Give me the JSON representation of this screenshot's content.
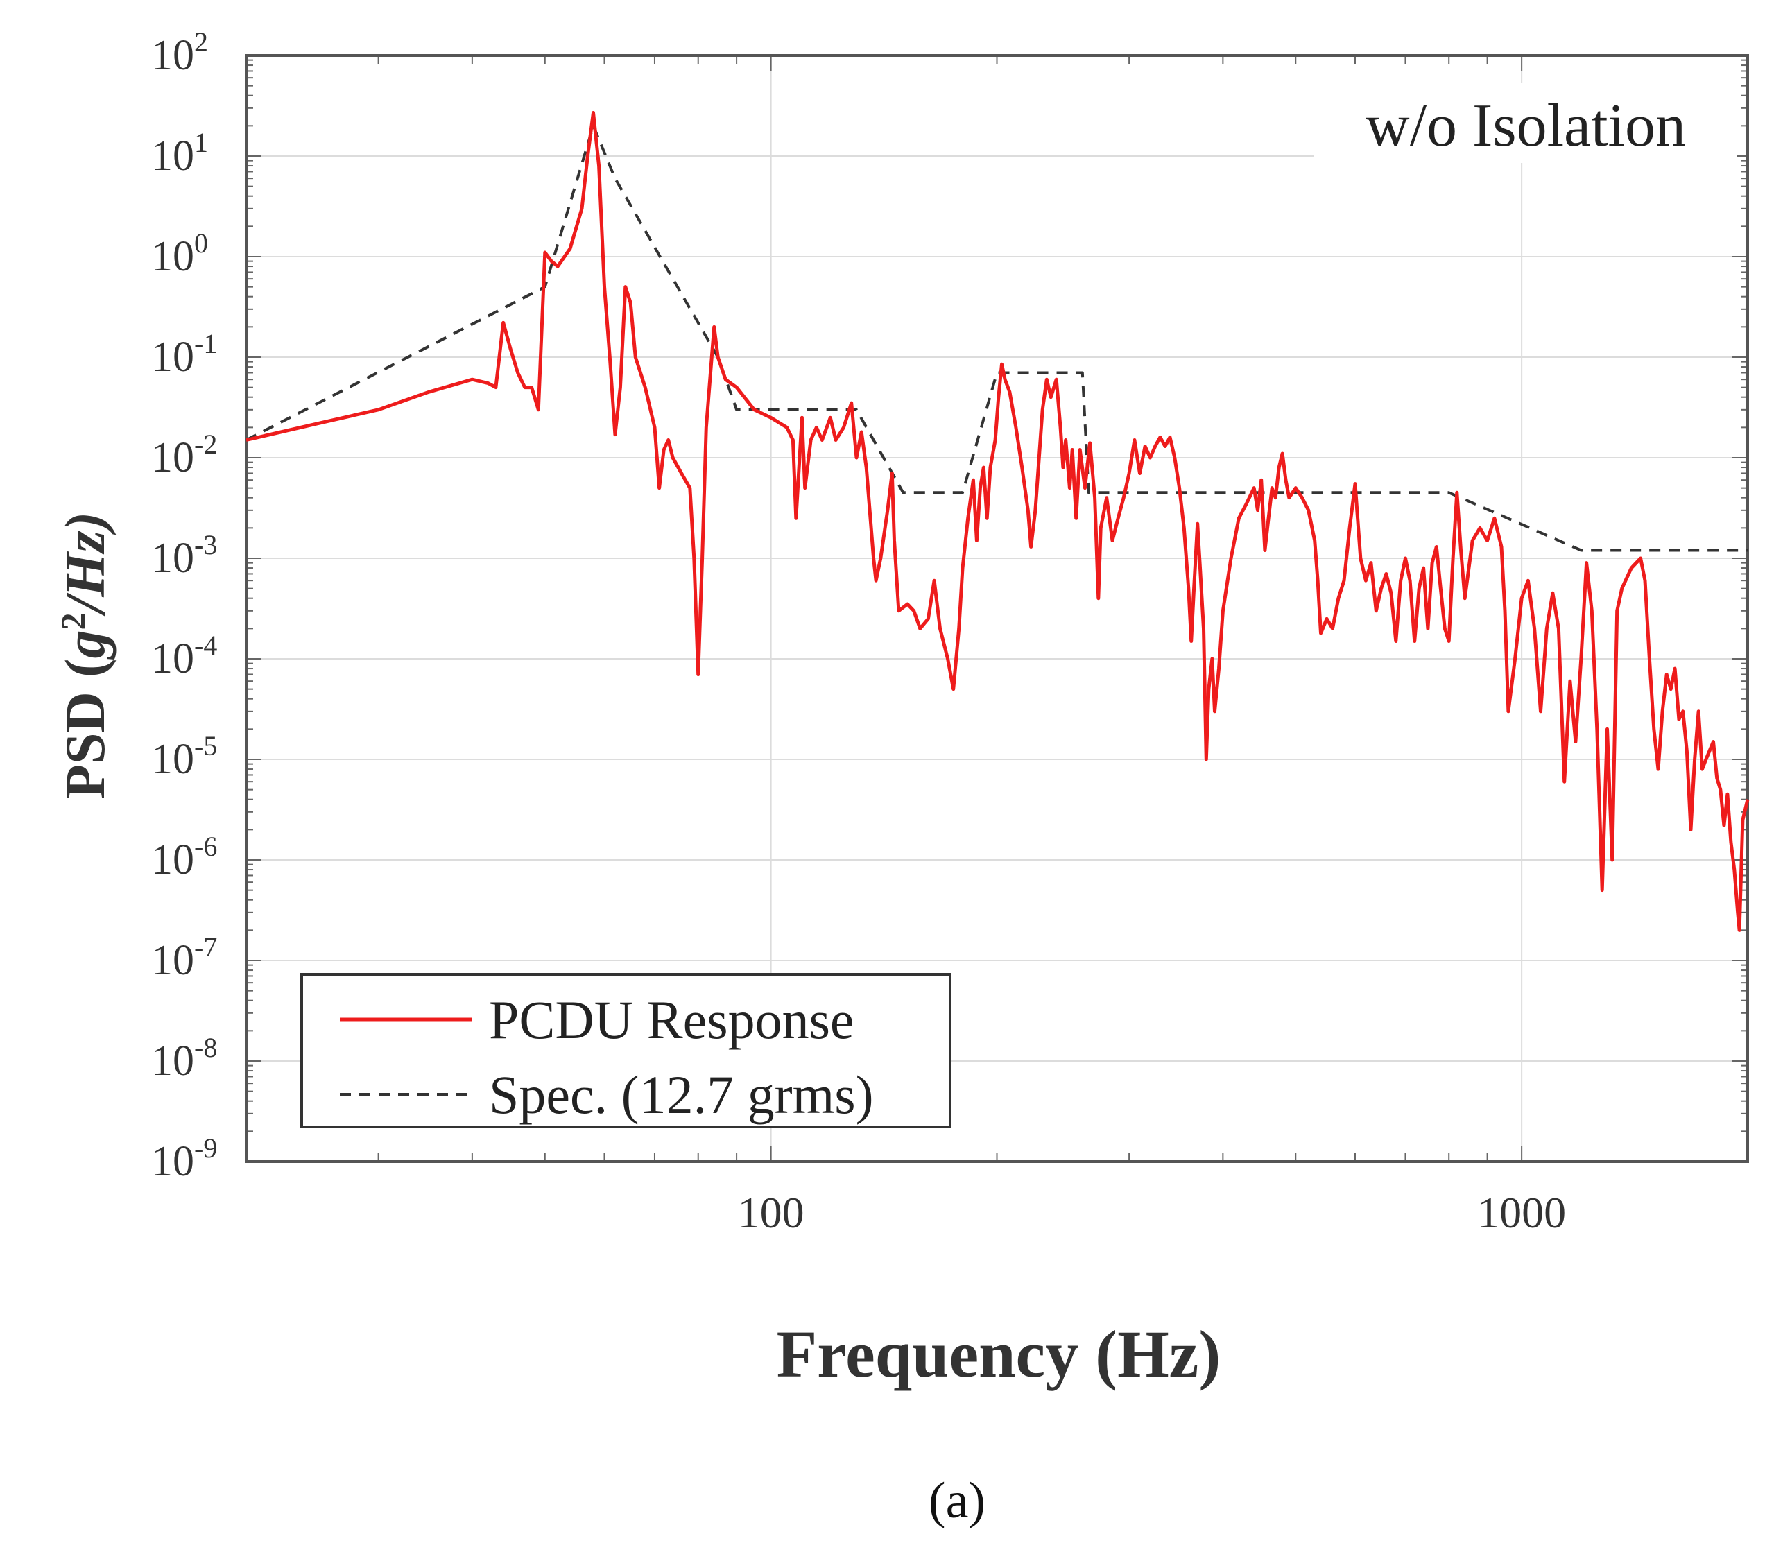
{
  "chart_data": {
    "type": "line",
    "title": "",
    "annotation": "w/o Isolation",
    "caption": "(a)",
    "xlabel": "Frequency (Hz)",
    "ylabel": {
      "prefix": "PSD (",
      "var": "g",
      "exp": "2",
      "suffix": "/Hz)"
    },
    "xscale": "log",
    "yscale": "log",
    "xlim": [
      20,
      2000
    ],
    "ylim": [
      1e-09,
      100
    ],
    "grid": true,
    "x_ticks": [
      {
        "value": 100,
        "label": "100"
      },
      {
        "value": 1000,
        "label": "1000"
      }
    ],
    "y_ticks": [
      {
        "value": 100,
        "base": "10",
        "exp": "2"
      },
      {
        "value": 10,
        "base": "10",
        "exp": "1"
      },
      {
        "value": 1,
        "base": "10",
        "exp": "0"
      },
      {
        "value": 0.1,
        "base": "10",
        "exp": "-1"
      },
      {
        "value": 0.01,
        "base": "10",
        "exp": "-2"
      },
      {
        "value": 0.001,
        "base": "10",
        "exp": "-3"
      },
      {
        "value": 0.0001,
        "base": "10",
        "exp": "-4"
      },
      {
        "value": 1e-05,
        "base": "10",
        "exp": "-5"
      },
      {
        "value": 1e-06,
        "base": "10",
        "exp": "-6"
      },
      {
        "value": 1e-07,
        "base": "10",
        "exp": "-7"
      },
      {
        "value": 1e-08,
        "base": "10",
        "exp": "-8"
      },
      {
        "value": 1e-09,
        "base": "10",
        "exp": "-9"
      }
    ],
    "legend": {
      "position": "bottom-left"
    },
    "series": [
      {
        "name": "PCDU Response",
        "color": "#ee1c1c",
        "style": "solid",
        "points": [
          [
            20,
            0.015
          ],
          [
            25,
            0.022
          ],
          [
            30,
            0.03
          ],
          [
            35,
            0.045
          ],
          [
            40,
            0.06
          ],
          [
            42,
            0.055
          ],
          [
            43,
            0.05
          ],
          [
            44,
            0.22
          ],
          [
            45,
            0.12
          ],
          [
            46,
            0.07
          ],
          [
            47,
            0.05
          ],
          [
            48,
            0.05
          ],
          [
            49,
            0.03
          ],
          [
            50,
            1.1
          ],
          [
            51,
            0.9
          ],
          [
            52,
            0.8
          ],
          [
            54,
            1.2
          ],
          [
            56,
            3.0
          ],
          [
            57,
            10
          ],
          [
            58,
            27
          ],
          [
            59,
            8
          ],
          [
            60,
            0.5
          ],
          [
            61,
            0.1
          ],
          [
            62,
            0.017
          ],
          [
            63,
            0.05
          ],
          [
            64,
            0.5
          ],
          [
            65,
            0.35
          ],
          [
            66,
            0.1
          ],
          [
            68,
            0.05
          ],
          [
            70,
            0.02
          ],
          [
            71,
            0.005
          ],
          [
            72,
            0.012
          ],
          [
            73,
            0.015
          ],
          [
            74,
            0.01
          ],
          [
            76,
            0.007
          ],
          [
            78,
            0.005
          ],
          [
            79,
            0.001
          ],
          [
            80,
            7e-05
          ],
          [
            81,
            0.001
          ],
          [
            82,
            0.02
          ],
          [
            84,
            0.2
          ],
          [
            85,
            0.1
          ],
          [
            87,
            0.06
          ],
          [
            90,
            0.05
          ],
          [
            95,
            0.03
          ],
          [
            100,
            0.025
          ],
          [
            105,
            0.02
          ],
          [
            107,
            0.015
          ],
          [
            108,
            0.0025
          ],
          [
            110,
            0.025
          ],
          [
            111,
            0.005
          ],
          [
            113,
            0.015
          ],
          [
            115,
            0.02
          ],
          [
            117,
            0.015
          ],
          [
            120,
            0.025
          ],
          [
            122,
            0.015
          ],
          [
            125,
            0.02
          ],
          [
            128,
            0.035
          ],
          [
            130,
            0.01
          ],
          [
            132,
            0.018
          ],
          [
            134,
            0.008
          ],
          [
            137,
            0.001
          ],
          [
            138,
            0.0006
          ],
          [
            140,
            0.001
          ],
          [
            143,
            0.003
          ],
          [
            145,
            0.007
          ],
          [
            146,
            0.0015
          ],
          [
            148,
            0.0003
          ],
          [
            152,
            0.00035
          ],
          [
            155,
            0.0003
          ],
          [
            158,
            0.0002
          ],
          [
            162,
            0.00025
          ],
          [
            165,
            0.0006
          ],
          [
            168,
            0.0002
          ],
          [
            172,
            0.0001
          ],
          [
            175,
            5e-05
          ],
          [
            178,
            0.0002
          ],
          [
            180,
            0.0008
          ],
          [
            183,
            0.0025
          ],
          [
            186,
            0.006
          ],
          [
            188,
            0.0015
          ],
          [
            190,
            0.005
          ],
          [
            192,
            0.008
          ],
          [
            194,
            0.0025
          ],
          [
            196,
            0.008
          ],
          [
            199,
            0.015
          ],
          [
            201,
            0.04
          ],
          [
            203,
            0.085
          ],
          [
            205,
            0.06
          ],
          [
            208,
            0.045
          ],
          [
            212,
            0.02
          ],
          [
            216,
            0.008
          ],
          [
            220,
            0.003
          ],
          [
            222,
            0.0013
          ],
          [
            225,
            0.003
          ],
          [
            230,
            0.03
          ],
          [
            233,
            0.06
          ],
          [
            236,
            0.04
          ],
          [
            240,
            0.06
          ],
          [
            243,
            0.02
          ],
          [
            245,
            0.008
          ],
          [
            247,
            0.015
          ],
          [
            250,
            0.005
          ],
          [
            252,
            0.012
          ],
          [
            255,
            0.0025
          ],
          [
            258,
            0.012
          ],
          [
            262,
            0.005
          ],
          [
            266,
            0.014
          ],
          [
            270,
            0.004
          ],
          [
            273,
            0.0004
          ],
          [
            275,
            0.002
          ],
          [
            280,
            0.004
          ],
          [
            285,
            0.0015
          ],
          [
            290,
            0.0025
          ],
          [
            295,
            0.004
          ],
          [
            300,
            0.007
          ],
          [
            305,
            0.015
          ],
          [
            310,
            0.007
          ],
          [
            315,
            0.013
          ],
          [
            320,
            0.01
          ],
          [
            325,
            0.013
          ],
          [
            330,
            0.016
          ],
          [
            335,
            0.013
          ],
          [
            340,
            0.016
          ],
          [
            345,
            0.01
          ],
          [
            350,
            0.005
          ],
          [
            355,
            0.002
          ],
          [
            360,
            0.0005
          ],
          [
            363,
            0.00015
          ],
          [
            366,
            0.0005
          ],
          [
            370,
            0.0022
          ],
          [
            373,
            0.0008
          ],
          [
            377,
            0.0002
          ],
          [
            380,
            1e-05
          ],
          [
            383,
            5e-05
          ],
          [
            387,
            0.0001
          ],
          [
            390,
            3e-05
          ],
          [
            395,
            8e-05
          ],
          [
            400,
            0.0003
          ],
          [
            410,
            0.001
          ],
          [
            420,
            0.0025
          ],
          [
            430,
            0.0035
          ],
          [
            440,
            0.005
          ],
          [
            445,
            0.003
          ],
          [
            450,
            0.006
          ],
          [
            455,
            0.0012
          ],
          [
            460,
            0.0025
          ],
          [
            465,
            0.005
          ],
          [
            470,
            0.004
          ],
          [
            475,
            0.008
          ],
          [
            480,
            0.011
          ],
          [
            485,
            0.006
          ],
          [
            490,
            0.004
          ],
          [
            500,
            0.005
          ],
          [
            510,
            0.004
          ],
          [
            520,
            0.003
          ],
          [
            530,
            0.0015
          ],
          [
            535,
            0.0006
          ],
          [
            540,
            0.00018
          ],
          [
            550,
            0.00025
          ],
          [
            560,
            0.0002
          ],
          [
            570,
            0.0004
          ],
          [
            580,
            0.0006
          ],
          [
            590,
            0.002
          ],
          [
            600,
            0.0055
          ],
          [
            610,
            0.001
          ],
          [
            620,
            0.0006
          ],
          [
            630,
            0.0009
          ],
          [
            640,
            0.0003
          ],
          [
            650,
            0.0005
          ],
          [
            660,
            0.0007
          ],
          [
            670,
            0.00045
          ],
          [
            680,
            0.00015
          ],
          [
            690,
            0.0006
          ],
          [
            700,
            0.001
          ],
          [
            710,
            0.0006
          ],
          [
            720,
            0.00015
          ],
          [
            730,
            0.0005
          ],
          [
            740,
            0.0008
          ],
          [
            750,
            0.0002
          ],
          [
            760,
            0.0009
          ],
          [
            770,
            0.0013
          ],
          [
            780,
            0.0005
          ],
          [
            790,
            0.0002
          ],
          [
            800,
            0.00015
          ],
          [
            810,
            0.001
          ],
          [
            820,
            0.0045
          ],
          [
            830,
            0.0012
          ],
          [
            840,
            0.0004
          ],
          [
            860,
            0.0015
          ],
          [
            880,
            0.002
          ],
          [
            900,
            0.0015
          ],
          [
            920,
            0.0025
          ],
          [
            940,
            0.0013
          ],
          [
            950,
            0.0003
          ],
          [
            960,
            3e-05
          ],
          [
            980,
            0.0001
          ],
          [
            1000,
            0.0004
          ],
          [
            1020,
            0.0006
          ],
          [
            1040,
            0.0002
          ],
          [
            1060,
            3e-05
          ],
          [
            1080,
            0.0002
          ],
          [
            1100,
            0.00045
          ],
          [
            1120,
            0.0002
          ],
          [
            1140,
            6e-06
          ],
          [
            1160,
            6e-05
          ],
          [
            1180,
            1.5e-05
          ],
          [
            1200,
            0.0001
          ],
          [
            1220,
            0.0009
          ],
          [
            1240,
            0.0003
          ],
          [
            1260,
            2e-05
          ],
          [
            1280,
            5e-07
          ],
          [
            1300,
            2e-05
          ],
          [
            1320,
            1e-06
          ],
          [
            1340,
            0.0003
          ],
          [
            1360,
            0.0005
          ],
          [
            1400,
            0.0008
          ],
          [
            1440,
            0.001
          ],
          [
            1460,
            0.0006
          ],
          [
            1480,
            0.0001
          ],
          [
            1500,
            2e-05
          ],
          [
            1520,
            8e-06
          ],
          [
            1540,
            3e-05
          ],
          [
            1560,
            7e-05
          ],
          [
            1580,
            5e-05
          ],
          [
            1600,
            8e-05
          ],
          [
            1620,
            2.5e-05
          ],
          [
            1640,
            3e-05
          ],
          [
            1660,
            1.2e-05
          ],
          [
            1680,
            2e-06
          ],
          [
            1700,
            1e-05
          ],
          [
            1720,
            3e-05
          ],
          [
            1740,
            8e-06
          ],
          [
            1760,
            1e-05
          ],
          [
            1800,
            1.5e-05
          ],
          [
            1820,
            6.5e-06
          ],
          [
            1840,
            5e-06
          ],
          [
            1860,
            2.2e-06
          ],
          [
            1880,
            4.5e-06
          ],
          [
            1900,
            1.5e-06
          ],
          [
            1920,
            8e-07
          ],
          [
            1940,
            3e-07
          ],
          [
            1950,
            2e-07
          ],
          [
            1970,
            2.5e-06
          ],
          [
            2000,
            4e-06
          ]
        ]
      },
      {
        "name": "Spec. (12.7 grms)",
        "color": "#333333",
        "style": "dashed",
        "points": [
          [
            20,
            0.015
          ],
          [
            50,
            0.5
          ],
          [
            58,
            20
          ],
          [
            62,
            6
          ],
          [
            85,
            0.1
          ],
          [
            90,
            0.03
          ],
          [
            130,
            0.03
          ],
          [
            150,
            0.0045
          ],
          [
            180,
            0.0045
          ],
          [
            200,
            0.07
          ],
          [
            260,
            0.07
          ],
          [
            265,
            0.0045
          ],
          [
            800,
            0.0045
          ],
          [
            1200,
            0.0012
          ],
          [
            2000,
            0.0012
          ]
        ]
      }
    ]
  }
}
